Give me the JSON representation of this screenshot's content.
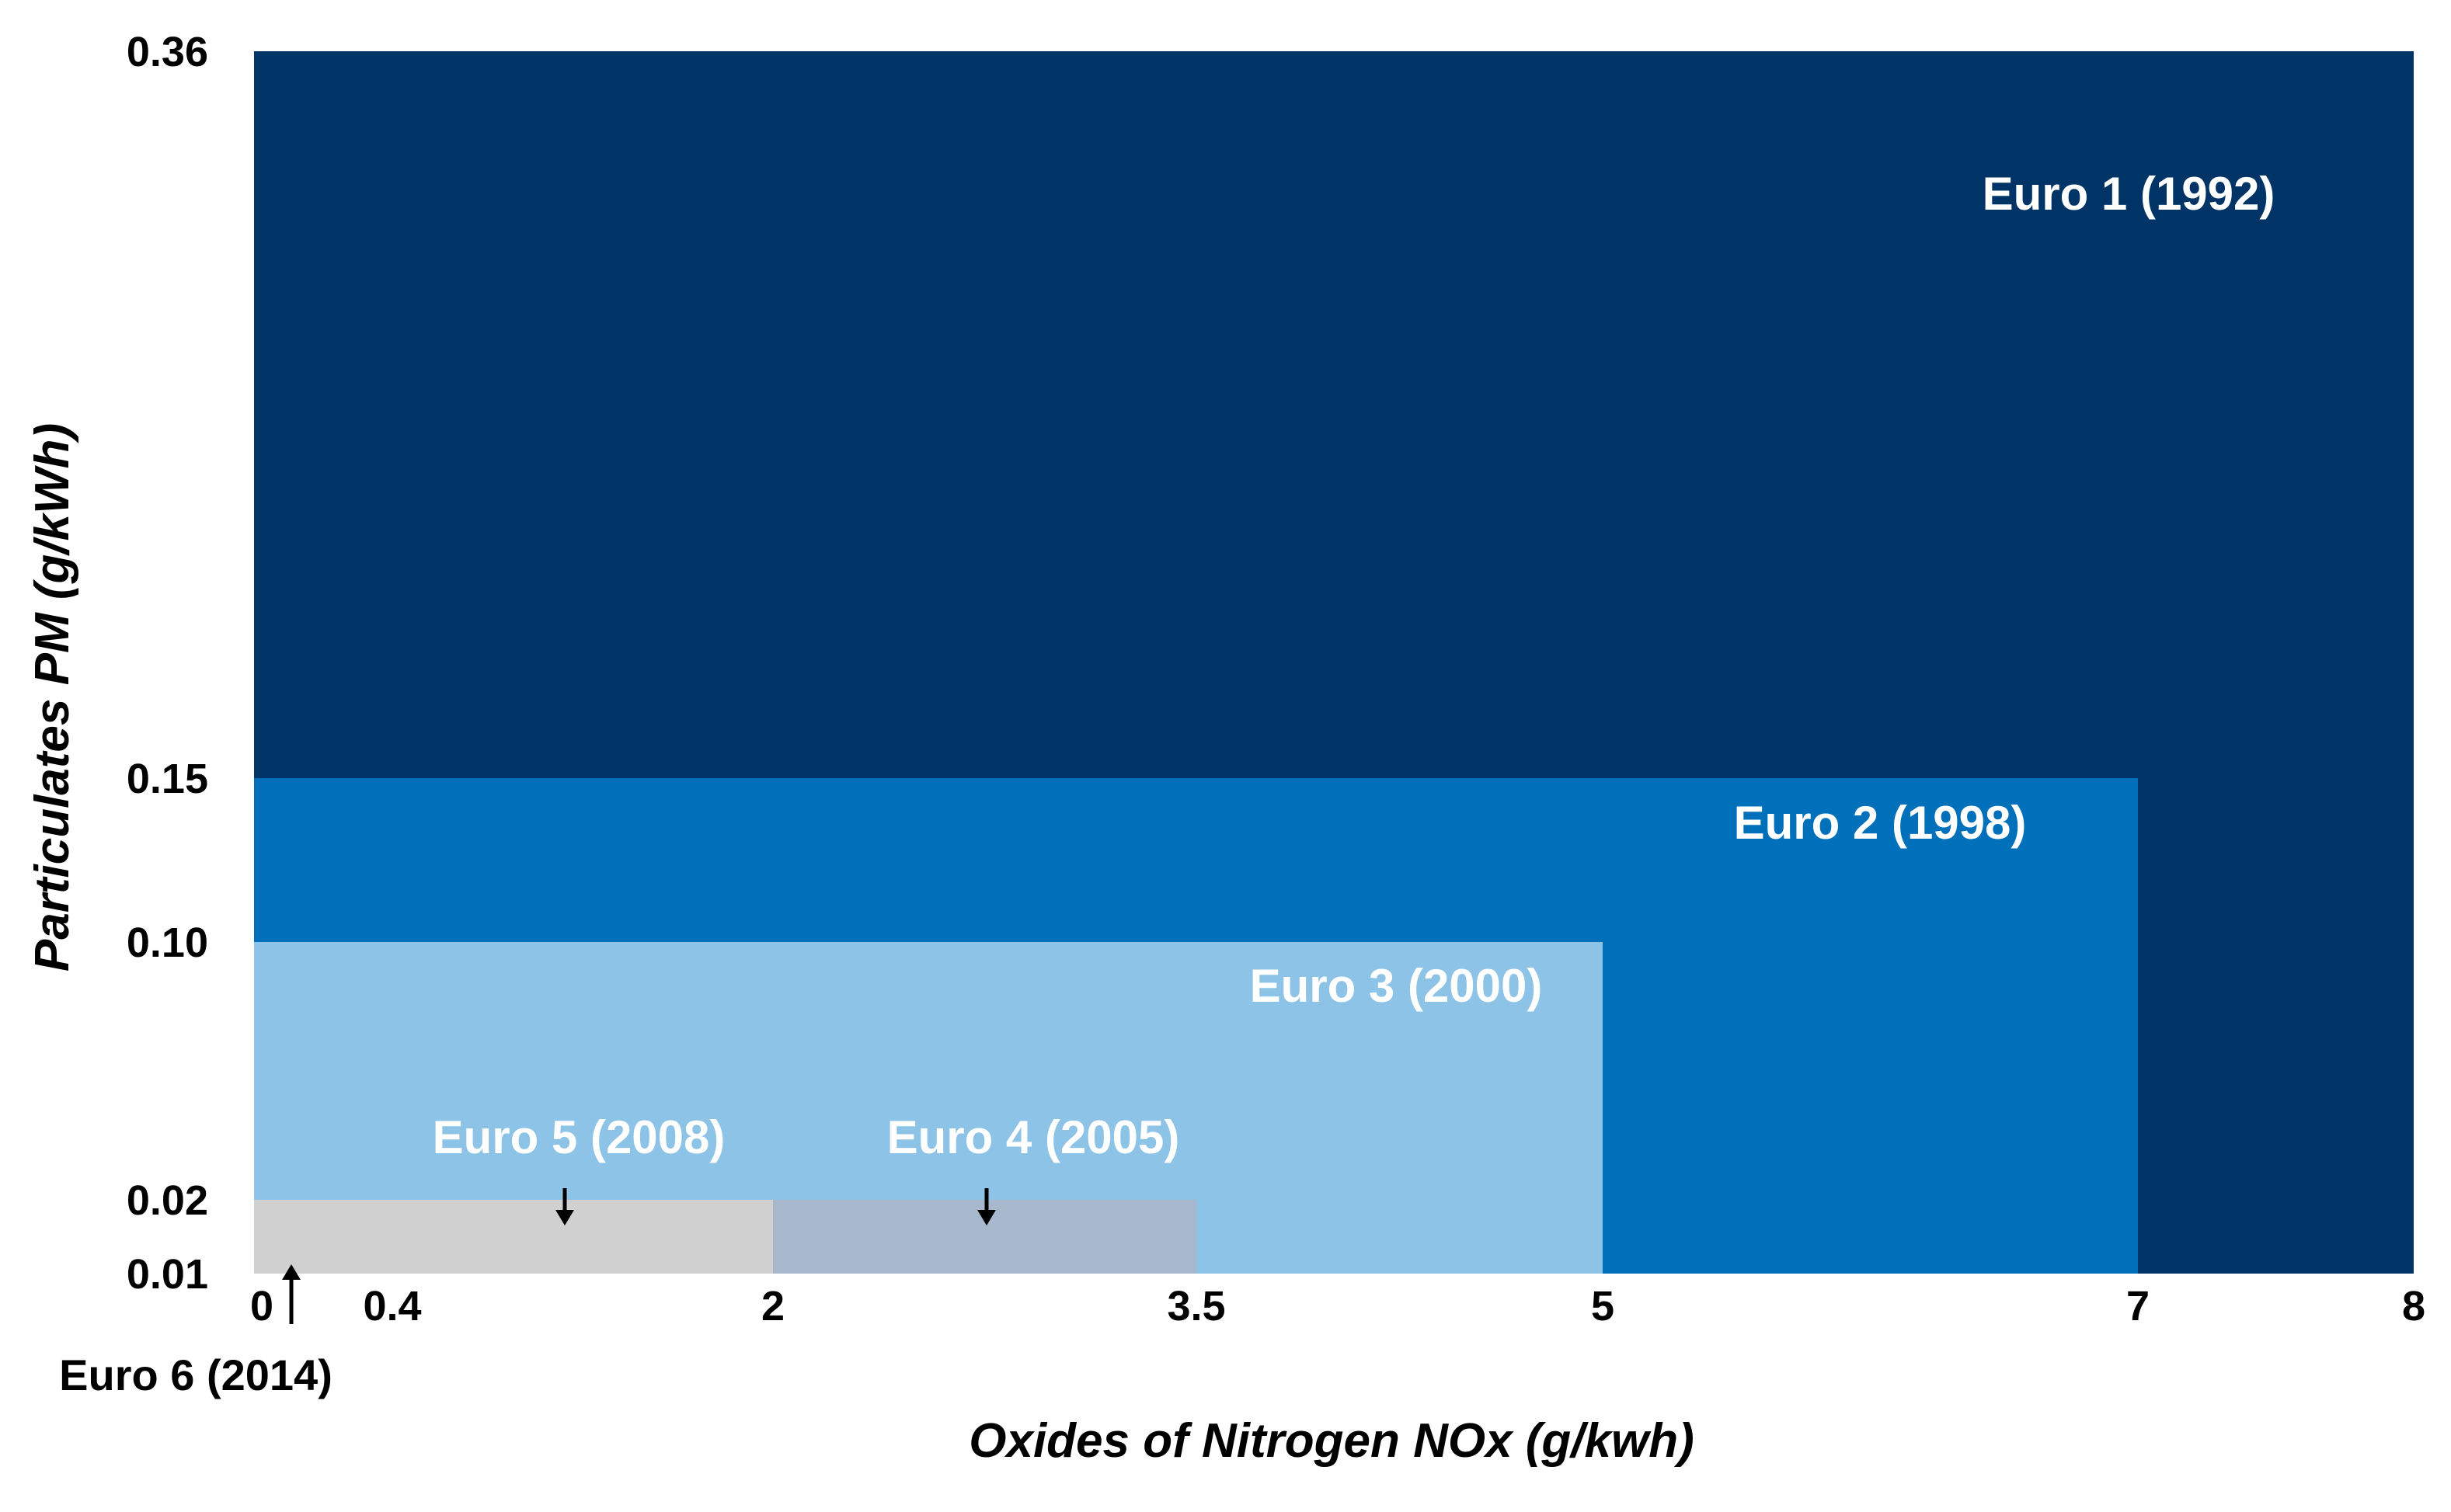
{
  "chart_data": {
    "type": "area",
    "xlabel": "Oxides of Nitrogen NOx (g/kwh)",
    "ylabel": "Particulates PM (g/kWh)",
    "x_ticks": [
      "0",
      "0.4",
      "2",
      "3.5",
      "5",
      "7",
      "8"
    ],
    "y_ticks": [
      "0.01",
      "0.02",
      "0.10",
      "0.15",
      "0.36"
    ],
    "grid": false,
    "legend": "none",
    "series": [
      {
        "name": "Euro 1 (1992)",
        "nox": 8,
        "pm": 0.36,
        "color": "#003366",
        "label_color": "#ffffff"
      },
      {
        "name": "Euro 2 (1998)",
        "nox": 7,
        "pm": 0.15,
        "color": "#0070BA",
        "label_color": "#ffffff"
      },
      {
        "name": "Euro 3 (2000)",
        "nox": 5,
        "pm": 0.1,
        "color": "#8DC3E6",
        "label_color": "#ffffff"
      },
      {
        "name": "Euro 4 (2005)",
        "nox": 3.5,
        "pm": 0.02,
        "color": "#A8B8CC",
        "label_color": "#ffffff"
      },
      {
        "name": "Euro 5 (2008)",
        "nox": 2,
        "pm": 0.02,
        "color": "#D0D0D0",
        "label_color": "#ffffff"
      },
      {
        "name": "Euro 6 (2014)",
        "nox": 0.4,
        "pm": 0.01,
        "color": "#F2F2F2",
        "label_color": "#000000"
      }
    ]
  }
}
